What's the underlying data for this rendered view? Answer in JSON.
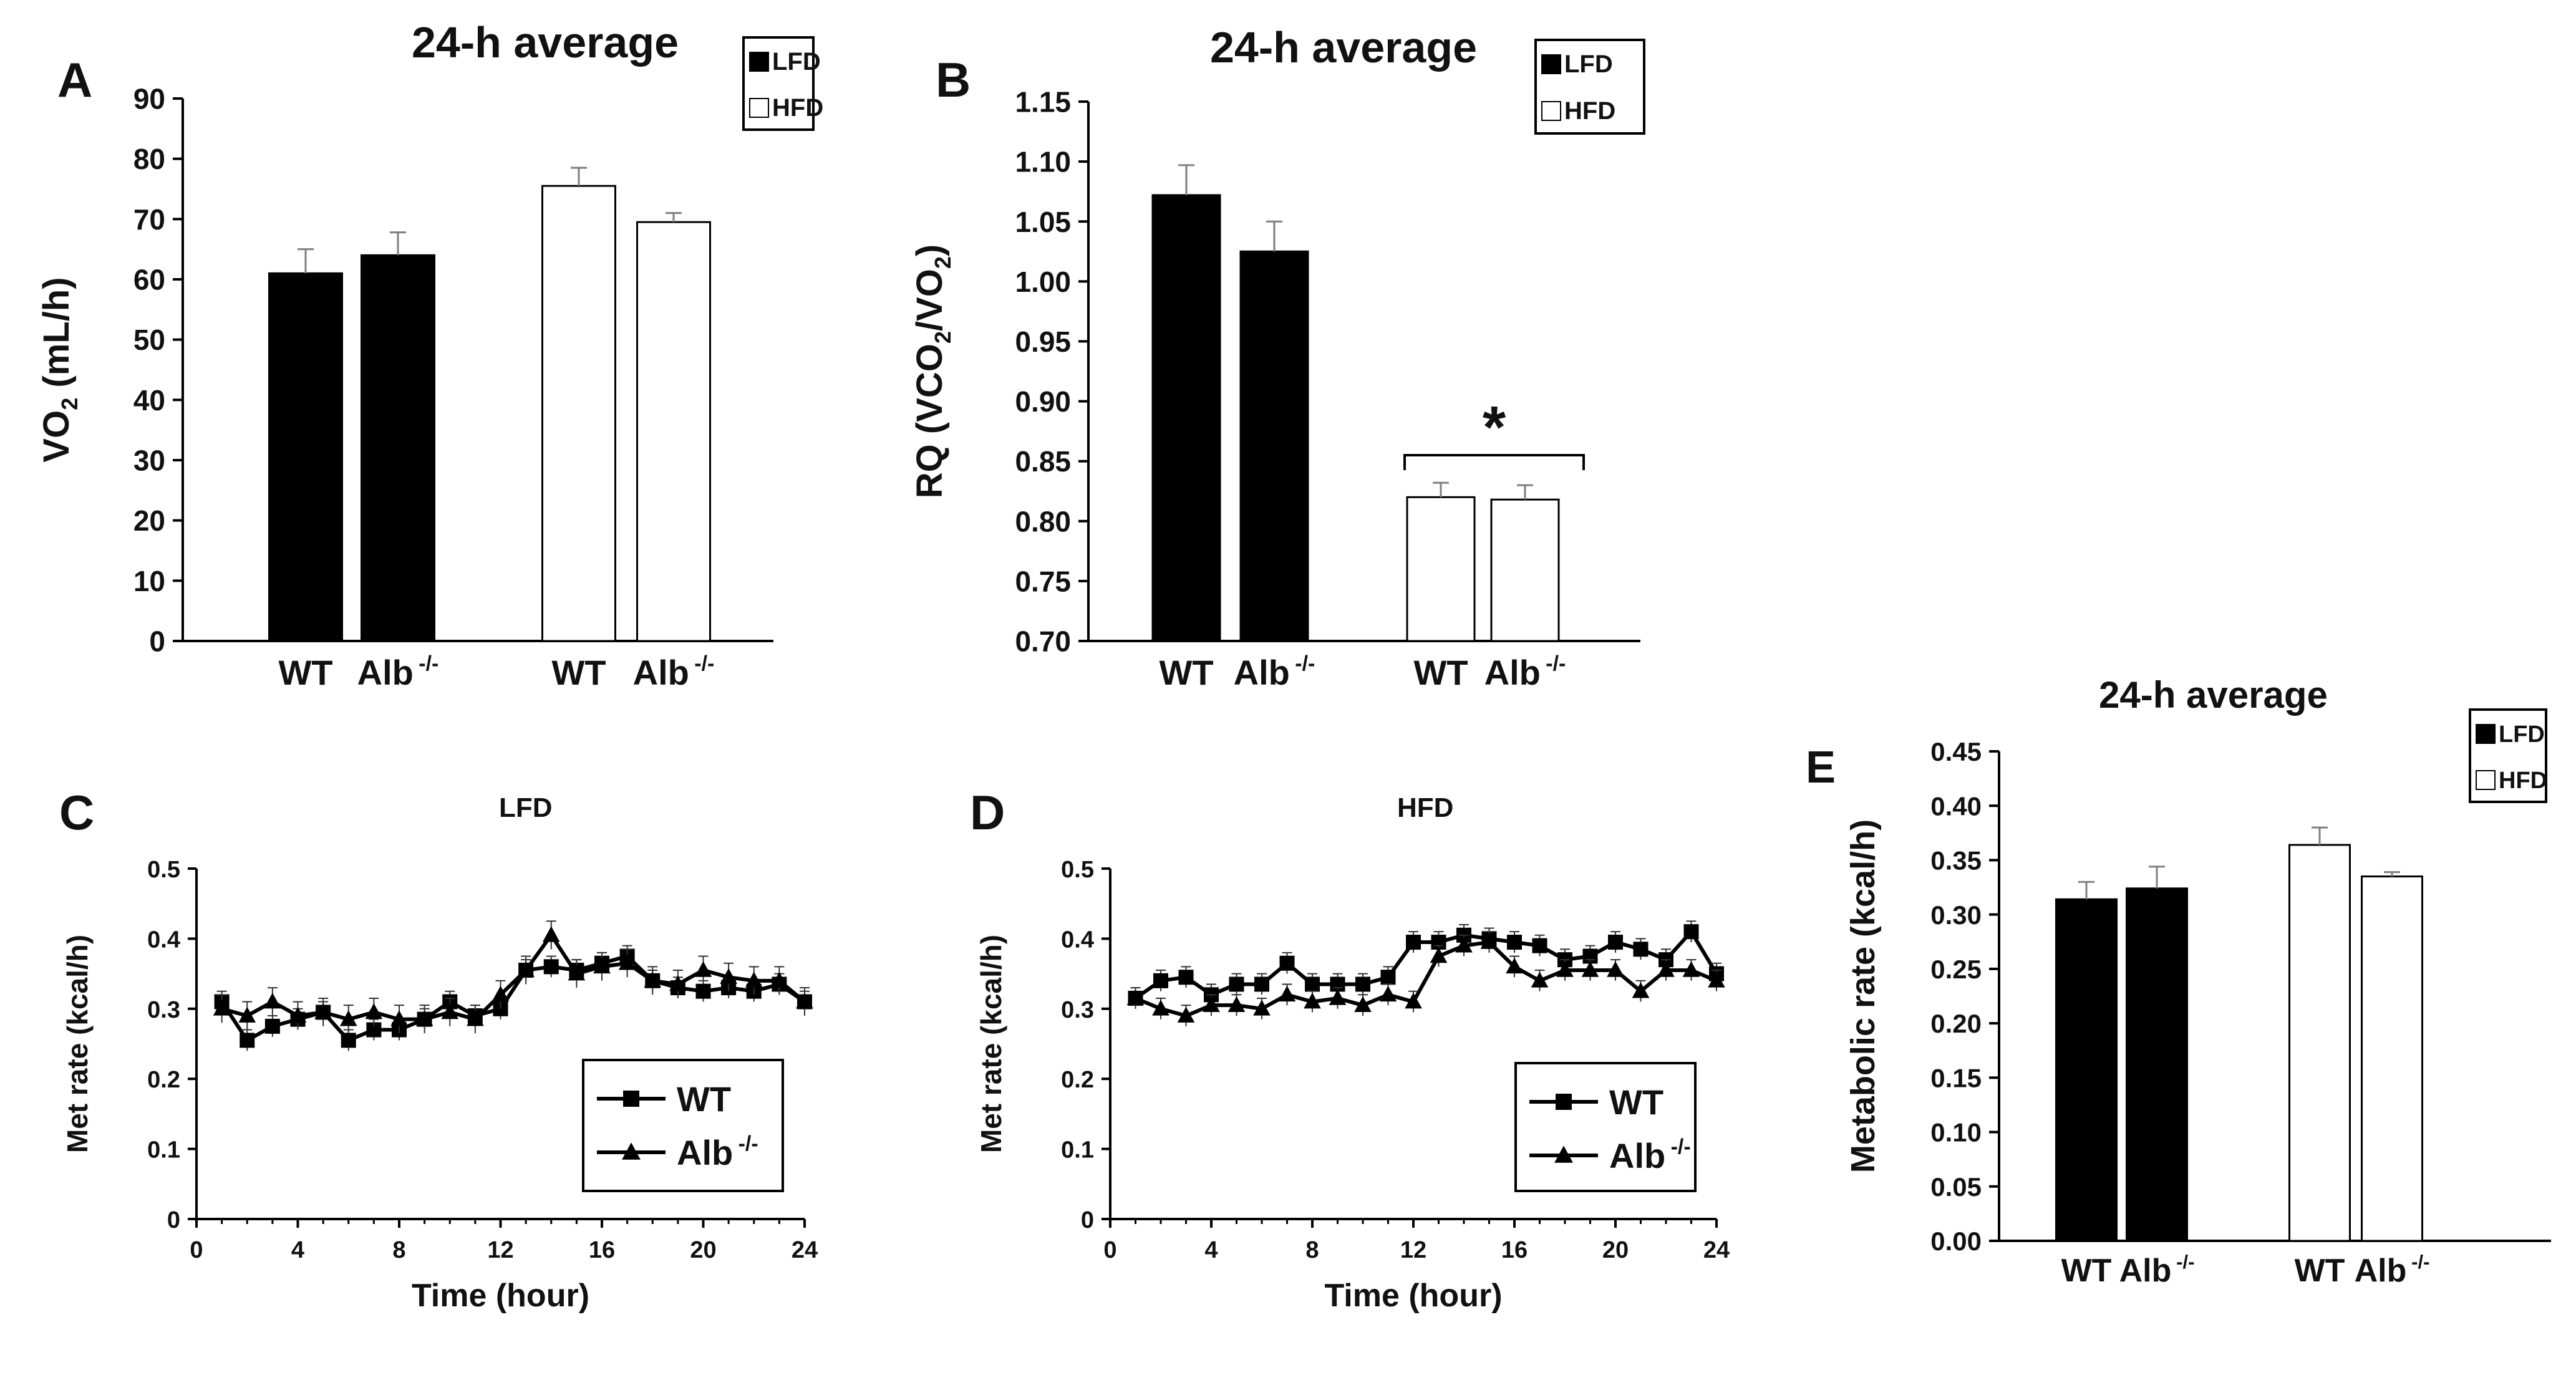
{
  "colors": {
    "lfd_fill": "#000000",
    "hfd_fill": "#ffffff",
    "axis": "#000000",
    "error_bar": "#7f7f7f"
  },
  "panels": {
    "A": {
      "letter": "A",
      "title": "24-h average"
    },
    "B": {
      "letter": "B",
      "title": "24-h average"
    },
    "C": {
      "letter": "C",
      "title": "LFD"
    },
    "D": {
      "letter": "D",
      "title": "HFD"
    },
    "E": {
      "letter": "E",
      "title": "24-h average"
    }
  },
  "chart_data": [
    {
      "id": "A",
      "type": "bar",
      "title": "24-h average",
      "ylabel": "VO",
      "ylabel_sub": "2",
      "ylabel_unit": " (mL/h)",
      "ylim": [
        0,
        90
      ],
      "yticks": [
        "0",
        "10",
        "20",
        "30",
        "40",
        "50",
        "60",
        "70",
        "80",
        "90"
      ],
      "legend": [
        "LFD",
        "HFD"
      ],
      "groups": [
        {
          "diet": "LFD",
          "bars": [
            {
              "label": "WT",
              "sup": "",
              "value": 61,
              "err": 4
            },
            {
              "label": "Alb",
              "sup": "-/-",
              "value": 64,
              "err": 3.8
            }
          ]
        },
        {
          "diet": "HFD",
          "bars": [
            {
              "label": "WT",
              "sup": "",
              "value": 75.5,
              "err": 3
            },
            {
              "label": "Alb",
              "sup": "-/-",
              "value": 69.5,
              "err": 1.5
            }
          ]
        }
      ]
    },
    {
      "id": "B",
      "type": "bar",
      "title": "24-h average",
      "ylabel": "RQ (VCO",
      "ylabel_sub": "2",
      "ylabel_mid": "/VO",
      "ylabel_sub2": "2",
      "ylabel_end": ")",
      "ylim": [
        0.7,
        1.15
      ],
      "yticks": [
        "0.70",
        "0.75",
        "0.80",
        "0.85",
        "0.90",
        "0.95",
        "1.00",
        "1.05",
        "1.10",
        "1.15"
      ],
      "legend": [
        "LFD",
        "HFD"
      ],
      "significance": "*",
      "groups": [
        {
          "diet": "LFD",
          "bars": [
            {
              "label": "WT",
              "sup": "",
              "value": 1.072,
              "err": 0.025
            },
            {
              "label": "Alb",
              "sup": "-/-",
              "value": 1.025,
              "err": 0.025
            }
          ]
        },
        {
          "diet": "HFD",
          "bars": [
            {
              "label": "WT",
              "sup": "",
              "value": 0.82,
              "err": 0.012
            },
            {
              "label": "Alb",
              "sup": "-/-",
              "value": 0.818,
              "err": 0.012
            }
          ]
        }
      ]
    },
    {
      "id": "C",
      "type": "line",
      "title": "LFD",
      "xlabel": "Time (hour)",
      "ylabel": "Met rate (kcal/h)",
      "xlim": [
        0,
        24
      ],
      "ylim": [
        0,
        0.5
      ],
      "xticks": [
        "0",
        "4",
        "8",
        "12",
        "16",
        "20",
        "24"
      ],
      "yticks": [
        "0",
        "0.1",
        "0.2",
        "0.3",
        "0.4",
        "0.5"
      ],
      "x": [
        1,
        2,
        3,
        4,
        5,
        6,
        7,
        8,
        9,
        10,
        11,
        12,
        13,
        14,
        15,
        16,
        17,
        18,
        19,
        20,
        21,
        22,
        23,
        24
      ],
      "series": [
        {
          "name": "WT",
          "sup": "",
          "marker": "square",
          "values": [
            0.31,
            0.255,
            0.275,
            0.285,
            0.295,
            0.255,
            0.27,
            0.27,
            0.285,
            0.31,
            0.29,
            0.3,
            0.355,
            0.36,
            0.355,
            0.365,
            0.375,
            0.34,
            0.33,
            0.325,
            0.33,
            0.325,
            0.335,
            0.31
          ],
          "err": 0.015
        },
        {
          "name": "Alb",
          "sup": "-/-",
          "marker": "triangle",
          "values": [
            0.3,
            0.29,
            0.31,
            0.29,
            0.295,
            0.285,
            0.295,
            0.285,
            0.285,
            0.295,
            0.285,
            0.32,
            0.355,
            0.405,
            0.35,
            0.36,
            0.365,
            0.34,
            0.335,
            0.355,
            0.345,
            0.34,
            0.34,
            0.31
          ],
          "err": 0.02
        }
      ]
    },
    {
      "id": "D",
      "type": "line",
      "title": "HFD",
      "xlabel": "Time (hour)",
      "ylabel": "Met rate (kcal/h)",
      "xlim": [
        0,
        24
      ],
      "ylim": [
        0,
        0.5
      ],
      "xticks": [
        "0",
        "4",
        "8",
        "12",
        "16",
        "20",
        "24"
      ],
      "yticks": [
        "0",
        "0.1",
        "0.2",
        "0.3",
        "0.4",
        "0.5"
      ],
      "x": [
        1,
        2,
        3,
        4,
        5,
        6,
        7,
        8,
        9,
        10,
        11,
        12,
        13,
        14,
        15,
        16,
        17,
        18,
        19,
        20,
        21,
        22,
        23,
        24
      ],
      "series": [
        {
          "name": "WT",
          "sup": "",
          "marker": "square",
          "values": [
            0.315,
            0.34,
            0.345,
            0.32,
            0.335,
            0.335,
            0.365,
            0.335,
            0.335,
            0.335,
            0.345,
            0.395,
            0.395,
            0.405,
            0.4,
            0.395,
            0.39,
            0.37,
            0.375,
            0.395,
            0.385,
            0.37,
            0.41,
            0.35
          ],
          "err": 0.015
        },
        {
          "name": "Alb",
          "sup": "-/-",
          "marker": "triangle",
          "values": [
            0.315,
            0.3,
            0.29,
            0.305,
            0.305,
            0.3,
            0.32,
            0.31,
            0.315,
            0.305,
            0.32,
            0.31,
            0.375,
            0.39,
            0.395,
            0.36,
            0.34,
            0.355,
            0.355,
            0.355,
            0.325,
            0.355,
            0.355,
            0.34
          ],
          "err": 0.015
        }
      ]
    },
    {
      "id": "E",
      "type": "bar",
      "title": "24-h average",
      "ylabel": "Metabolic rate (kcal/h)",
      "ylim": [
        0,
        0.45
      ],
      "yticks": [
        "0.00",
        "0.05",
        "0.10",
        "0.15",
        "0.20",
        "0.25",
        "0.30",
        "0.35",
        "0.40",
        "0.45"
      ],
      "legend": [
        "LFD",
        "HFD"
      ],
      "groups": [
        {
          "diet": "LFD",
          "bars": [
            {
              "label": "WT",
              "sup": "",
              "value": 0.314,
              "err": 0.016
            },
            {
              "label": "Alb",
              "sup": "-/-",
              "value": 0.324,
              "err": 0.02
            }
          ]
        },
        {
          "diet": "HFD",
          "bars": [
            {
              "label": "WT",
              "sup": "",
              "value": 0.364,
              "err": 0.016
            },
            {
              "label": "Alb",
              "sup": "-/-",
              "value": 0.335,
              "err": 0.004
            }
          ]
        }
      ]
    }
  ]
}
